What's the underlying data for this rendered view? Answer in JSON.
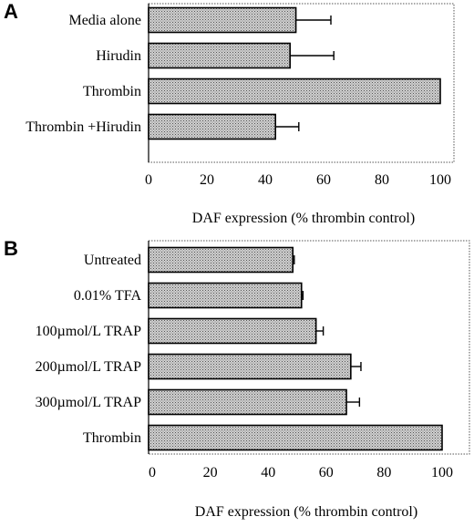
{
  "chart_data": [
    {
      "panel": "A",
      "type": "bar",
      "orientation": "horizontal",
      "categories": [
        "Media alone",
        "Hirudin",
        "Thrombin",
        "Thrombin +Hirudin"
      ],
      "values": [
        50.5,
        48.5,
        100,
        43.5
      ],
      "errors": [
        12,
        15,
        0,
        8
      ],
      "xlabel": "DAF expression (% thrombin control)",
      "xlim": [
        0,
        110
      ],
      "xticks": [
        "0",
        "20",
        "40",
        "60",
        "80",
        "100"
      ],
      "tick_values": [
        0,
        20,
        40,
        60,
        80,
        100
      ],
      "grid": false
    },
    {
      "panel": "B",
      "type": "bar",
      "orientation": "horizontal",
      "categories": [
        "Untreated",
        "0.01% TFA",
        "100µmol/L TRAP",
        "200µmol/L TRAP",
        "300µmol/L TRAP",
        "Thrombin"
      ],
      "values": [
        48.5,
        51.5,
        56.5,
        68.5,
        67,
        100
      ],
      "errors": [
        0.5,
        0.5,
        2.5,
        3.5,
        4.5,
        0
      ],
      "xlabel": "DAF expression (% thrombin control)",
      "xlim": [
        0,
        110
      ],
      "xticks": [
        "0",
        "20",
        "40",
        "60",
        "80",
        "100"
      ],
      "tick_values": [
        0,
        20,
        40,
        60,
        80,
        100
      ],
      "grid": false
    }
  ]
}
